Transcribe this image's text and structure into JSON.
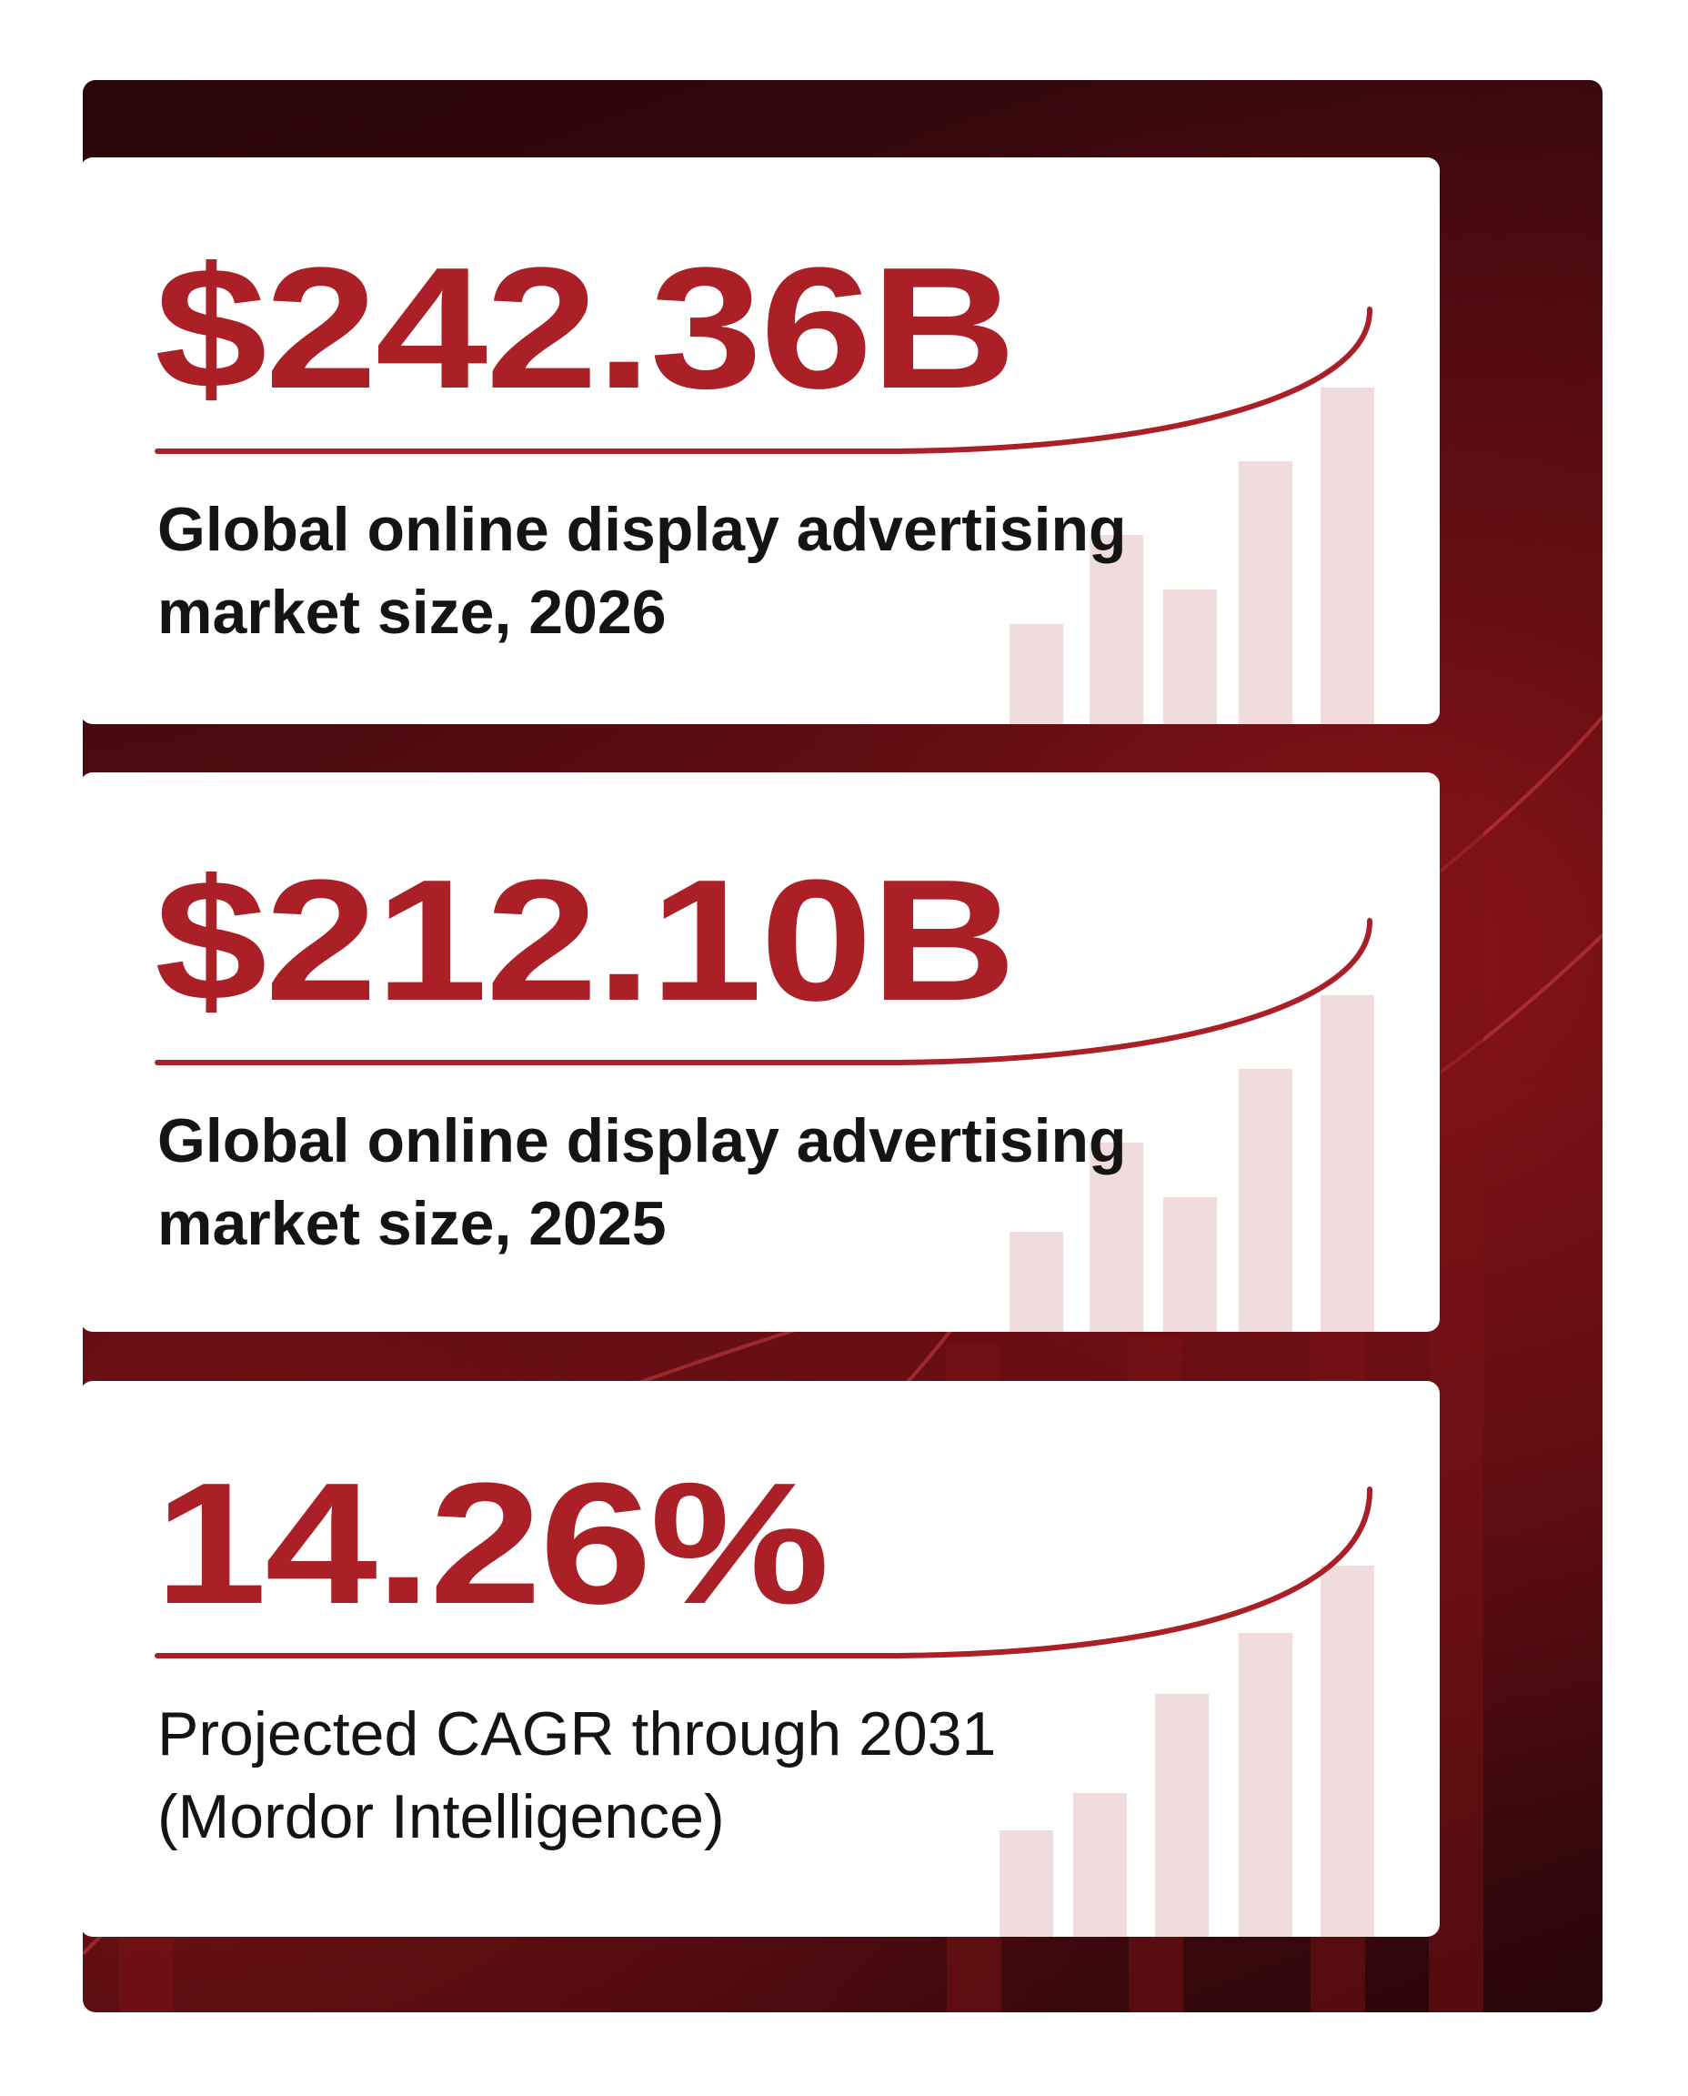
{
  "cards": [
    {
      "value": "$242.36B",
      "description": [
        "Global online display advertising",
        "market size, 2026"
      ]
    },
    {
      "value": "$212.10B",
      "description": [
        "Global online display advertising",
        "market size, 2025"
      ]
    },
    {
      "value": "14.26%",
      "description": [
        "Projected CAGR through 2031",
        "(Mordor Intelligence)"
      ]
    }
  ]
}
